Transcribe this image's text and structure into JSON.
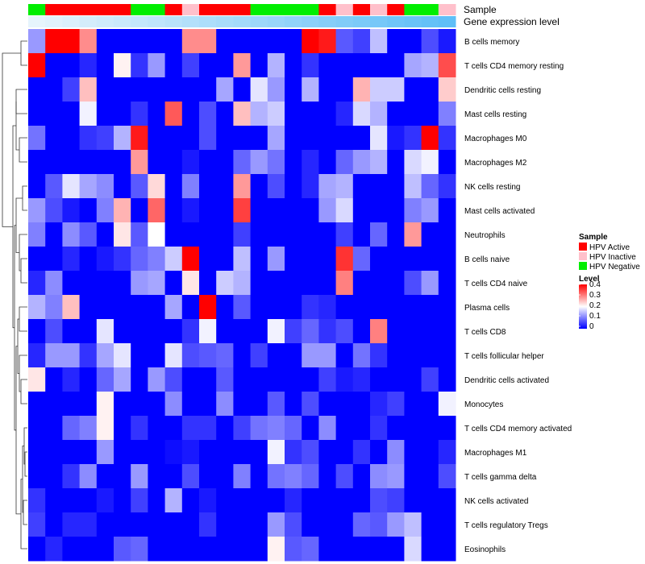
{
  "chart_data": {
    "type": "heatmap",
    "annotation_labels": [
      "Sample",
      "Gene expression level"
    ],
    "sample_colors": {
      "HPV Active": "#ff0000",
      "HPV Inactive": "#ffc0cb",
      "HPV Negative": "#00ee00"
    },
    "sample_annotation": [
      "HPV Negative",
      "HPV Active",
      "HPV Active",
      "HPV Active",
      "HPV Active",
      "HPV Active",
      "HPV Negative",
      "HPV Negative",
      "HPV Active",
      "HPV Inactive",
      "HPV Active",
      "HPV Active",
      "HPV Active",
      "HPV Negative",
      "HPV Negative",
      "HPV Negative",
      "HPV Negative",
      "HPV Active",
      "HPV Inactive",
      "HPV Active",
      "HPV Inactive",
      "HPV Active",
      "HPV Negative",
      "HPV Negative",
      "HPV Inactive"
    ],
    "gene_expression_level": [
      0.0,
      0.04,
      0.08,
      0.13,
      0.17,
      0.21,
      0.25,
      0.29,
      0.33,
      0.38,
      0.42,
      0.46,
      0.5,
      0.54,
      0.58,
      0.63,
      0.67,
      0.71,
      0.75,
      0.79,
      0.83,
      0.88,
      0.92,
      0.96,
      1.0
    ],
    "gene_expression_colors": [
      "#e6f4fc",
      "#5fbff7"
    ],
    "rows": [
      "B cells memory",
      "T cells CD4 memory resting",
      "Dendritic cells resting",
      "Mast cells resting",
      "Macrophages M0",
      "Macrophages M2",
      "NK cells resting",
      "Mast cells activated",
      "Neutrophils",
      "B cells naive",
      "T cells CD4 naive",
      "Plasma cells",
      "T cells CD8",
      "T cells follicular helper",
      "Dendritic cells activated",
      "Monocytes",
      "T cells CD4 memory activated",
      "Macrophages M1",
      "T cells gamma delta",
      "NK cells activated",
      "T cells regulatory  Tregs",
      "Eosinophils"
    ],
    "values": [
      [
        0.12,
        0.4,
        0.4,
        0.29,
        0.0,
        0.0,
        0.0,
        0.0,
        0.0,
        0.29,
        0.29,
        0.0,
        0.0,
        0.0,
        0.0,
        0.0,
        0.4,
        0.38,
        0.07,
        0.05,
        0.15,
        0.0,
        0.0,
        0.06,
        0.02
      ],
      [
        0.4,
        0.0,
        0.0,
        0.03,
        0.0,
        0.21,
        0.04,
        0.12,
        0.0,
        0.05,
        0.0,
        0.0,
        0.28,
        0.0,
        0.14,
        0.0,
        0.04,
        0.0,
        0.0,
        0.0,
        0.0,
        0.0,
        0.13,
        0.14,
        0.34
      ],
      [
        0.0,
        0.0,
        0.05,
        0.25,
        0.0,
        0.0,
        0.0,
        0.0,
        0.0,
        0.0,
        0.0,
        0.13,
        0.0,
        0.18,
        0.12,
        0.0,
        0.14,
        0.0,
        0.0,
        0.26,
        0.16,
        0.16,
        0.0,
        0.0,
        0.24
      ],
      [
        0.0,
        0.0,
        0.0,
        0.19,
        0.0,
        0.0,
        0.04,
        0.0,
        0.33,
        0.0,
        0.06,
        0.0,
        0.25,
        0.14,
        0.16,
        0.0,
        0.0,
        0.0,
        0.03,
        0.17,
        0.14,
        0.0,
        0.0,
        0.0,
        0.1
      ],
      [
        0.09,
        0.0,
        0.0,
        0.04,
        0.05,
        0.14,
        0.38,
        0.0,
        0.0,
        0.0,
        0.06,
        0.0,
        0.0,
        0.0,
        0.13,
        0.0,
        0.0,
        0.0,
        0.0,
        0.0,
        0.18,
        0.02,
        0.04,
        0.4,
        0.04
      ],
      [
        0.0,
        0.0,
        0.0,
        0.0,
        0.0,
        0.0,
        0.28,
        0.0,
        0.0,
        0.02,
        0.0,
        0.0,
        0.08,
        0.12,
        0.09,
        0.0,
        0.03,
        0.0,
        0.08,
        0.12,
        0.14,
        0.0,
        0.17,
        0.19,
        0.0
      ],
      [
        0.0,
        0.07,
        0.18,
        0.13,
        0.11,
        0.0,
        0.07,
        0.23,
        0.0,
        0.1,
        0.0,
        0.0,
        0.28,
        0.0,
        0.06,
        0.0,
        0.03,
        0.13,
        0.14,
        0.0,
        0.0,
        0.0,
        0.15,
        0.08,
        0.04
      ],
      [
        0.12,
        0.06,
        0.02,
        0.0,
        0.1,
        0.26,
        0.0,
        0.32,
        0.0,
        0.02,
        0.0,
        0.0,
        0.35,
        0.0,
        0.0,
        0.0,
        0.0,
        0.12,
        0.17,
        0.0,
        0.0,
        0.0,
        0.1,
        0.12,
        0.0
      ],
      [
        0.1,
        0.0,
        0.11,
        0.07,
        0.0,
        0.22,
        0.07,
        0.2,
        0.0,
        0.0,
        0.0,
        0.0,
        0.05,
        0.0,
        0.0,
        0.0,
        0.0,
        0.0,
        0.05,
        0.0,
        0.08,
        0.0,
        0.28,
        0.0,
        0.0
      ],
      [
        0.0,
        0.0,
        0.03,
        0.0,
        0.02,
        0.04,
        0.08,
        0.1,
        0.16,
        0.4,
        0.0,
        0.0,
        0.15,
        0.0,
        0.12,
        0.0,
        0.0,
        0.0,
        0.36,
        0.08,
        0.0,
        0.0,
        0.0,
        0.0,
        0.0
      ],
      [
        0.03,
        0.11,
        0.0,
        0.0,
        0.0,
        0.0,
        0.12,
        0.13,
        0.0,
        0.22,
        0.0,
        0.16,
        0.14,
        0.0,
        0.0,
        0.0,
        0.0,
        0.0,
        0.3,
        0.0,
        0.0,
        0.0,
        0.06,
        0.12,
        0.0
      ],
      [
        0.14,
        0.1,
        0.25,
        0.0,
        0.0,
        0.0,
        0.0,
        0.0,
        0.13,
        0.0,
        0.4,
        0.0,
        0.07,
        0.0,
        0.0,
        0.0,
        0.04,
        0.03,
        0.0,
        0.0,
        0.0,
        0.0,
        0.0,
        0.0,
        0.0
      ],
      [
        0.0,
        0.06,
        0.0,
        0.0,
        0.18,
        0.0,
        0.0,
        0.0,
        0.0,
        0.04,
        0.19,
        0.0,
        0.0,
        0.0,
        0.19,
        0.05,
        0.08,
        0.04,
        0.06,
        0.0,
        0.3,
        0.0,
        0.0,
        0.0,
        0.0
      ],
      [
        0.03,
        0.12,
        0.12,
        0.04,
        0.13,
        0.18,
        0.0,
        0.0,
        0.18,
        0.06,
        0.07,
        0.08,
        0.0,
        0.05,
        0.0,
        0.0,
        0.12,
        0.12,
        0.0,
        0.09,
        0.04,
        0.0,
        0.0,
        0.0,
        0.0
      ],
      [
        0.22,
        0.0,
        0.03,
        0.0,
        0.08,
        0.13,
        0.0,
        0.12,
        0.06,
        0.0,
        0.0,
        0.07,
        0.0,
        0.0,
        0.0,
        0.0,
        0.0,
        0.05,
        0.02,
        0.03,
        0.0,
        0.0,
        0.0,
        0.05,
        0.0
      ],
      [
        0.0,
        0.0,
        0.0,
        0.0,
        0.21,
        0.0,
        0.0,
        0.0,
        0.11,
        0.0,
        0.0,
        0.11,
        0.0,
        0.0,
        0.07,
        0.0,
        0.06,
        0.0,
        0.0,
        0.0,
        0.03,
        0.05,
        0.0,
        0.0,
        0.19
      ],
      [
        0.0,
        0.0,
        0.08,
        0.1,
        0.21,
        0.0,
        0.04,
        0.0,
        0.0,
        0.04,
        0.04,
        0.0,
        0.05,
        0.09,
        0.1,
        0.08,
        0.0,
        0.11,
        0.0,
        0.0,
        0.04,
        0.0,
        0.0,
        0.0,
        0.0
      ],
      [
        0.0,
        0.0,
        0.0,
        0.0,
        0.12,
        0.0,
        0.0,
        0.0,
        0.01,
        0.02,
        0.0,
        0.0,
        0.0,
        0.0,
        0.19,
        0.04,
        0.06,
        0.0,
        0.0,
        0.04,
        0.0,
        0.11,
        0.0,
        0.0,
        0.03
      ],
      [
        0.0,
        0.0,
        0.04,
        0.11,
        0.0,
        0.0,
        0.12,
        0.0,
        0.0,
        0.06,
        0.0,
        0.0,
        0.1,
        0.0,
        0.09,
        0.1,
        0.08,
        0.0,
        0.06,
        0.0,
        0.11,
        0.12,
        0.0,
        0.0,
        0.06
      ],
      [
        0.04,
        0.0,
        0.0,
        0.0,
        0.02,
        0.0,
        0.05,
        0.0,
        0.14,
        0.0,
        0.02,
        0.0,
        0.0,
        0.0,
        0.0,
        0.03,
        0.0,
        0.0,
        0.0,
        0.0,
        0.06,
        0.05,
        0.0,
        0.0,
        0.0
      ],
      [
        0.05,
        0.0,
        0.03,
        0.03,
        0.0,
        0.0,
        0.0,
        0.0,
        0.0,
        0.0,
        0.04,
        0.0,
        0.0,
        0.0,
        0.12,
        0.06,
        0.0,
        0.0,
        0.0,
        0.08,
        0.07,
        0.12,
        0.15,
        0.0,
        0.0
      ],
      [
        0.0,
        0.03,
        0.0,
        0.0,
        0.0,
        0.07,
        0.08,
        0.0,
        0.0,
        0.0,
        0.0,
        0.0,
        0.0,
        0.0,
        0.21,
        0.07,
        0.08,
        0.0,
        0.0,
        0.0,
        0.0,
        0.0,
        0.17,
        0.0,
        0.0
      ]
    ],
    "color_scale": {
      "min": 0,
      "max": 0.4,
      "colors": [
        "#0000ff",
        "#ffffff",
        "#ff0000"
      ]
    },
    "legend": {
      "sample_title": "Sample",
      "sample_entries": [
        "HPV Active",
        "HPV Inactive",
        "HPV Negative"
      ],
      "level_title": "Level",
      "level_ticks": [
        "0.4",
        "0.3",
        "0.2",
        "0.1",
        "0"
      ]
    },
    "legend_position": "right"
  }
}
